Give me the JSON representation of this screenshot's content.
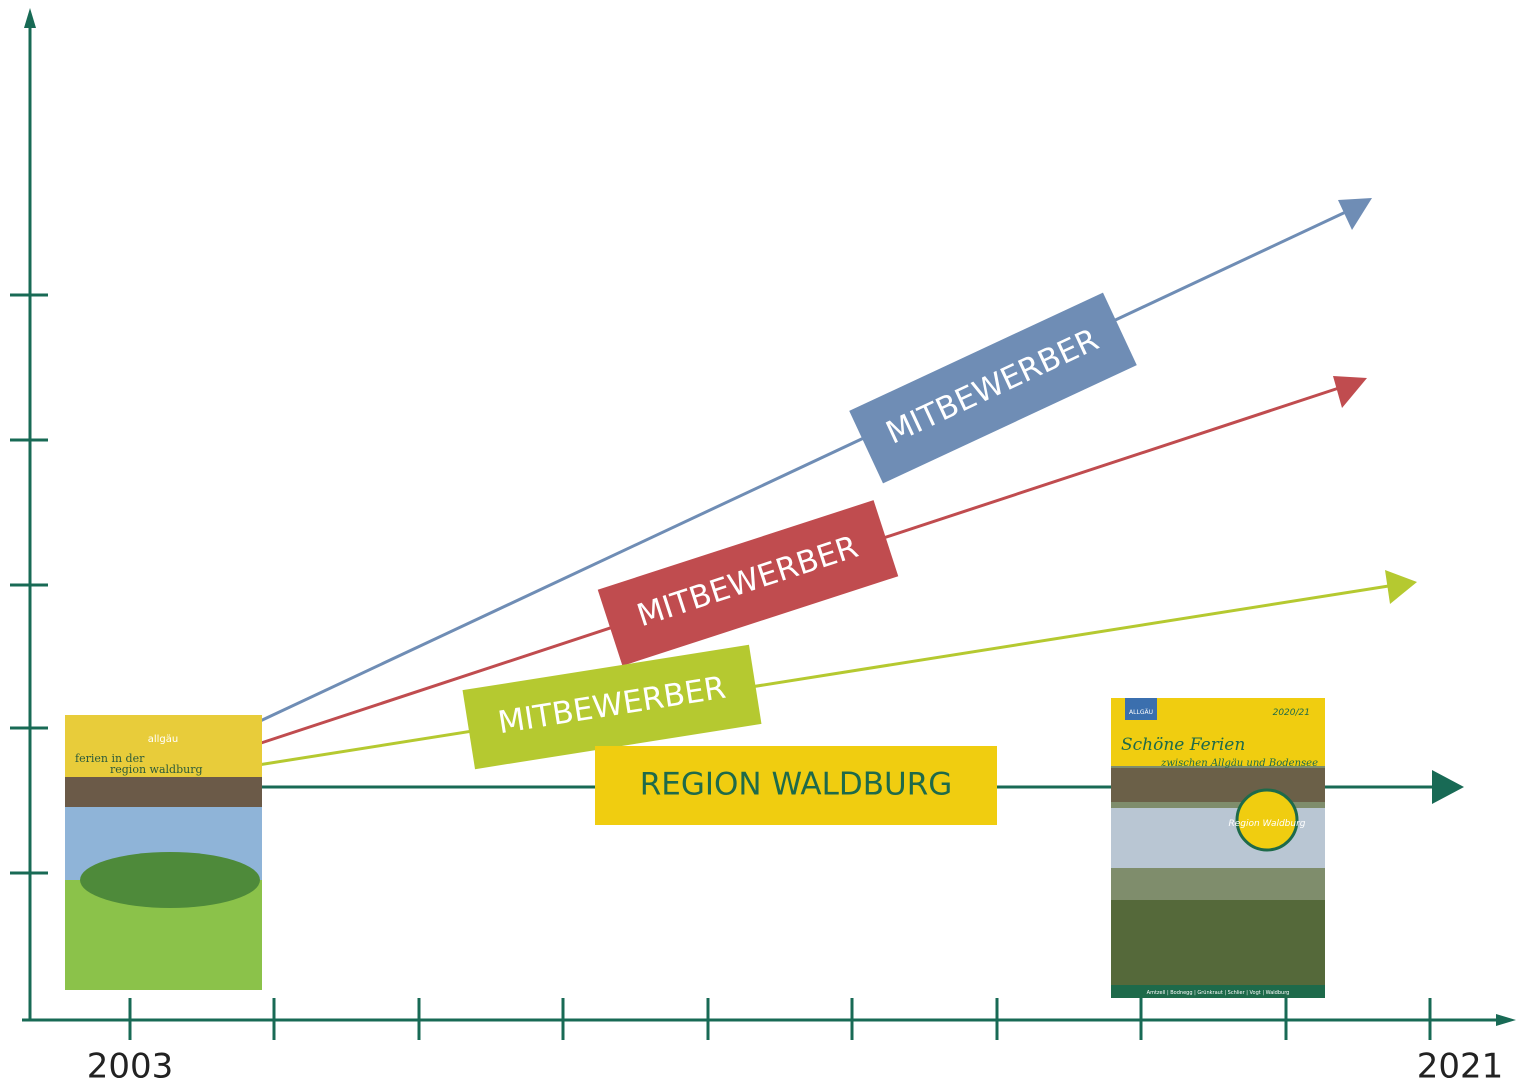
{
  "axis": {
    "start_label": "2003",
    "end_label": "2021"
  },
  "arrows": [
    {
      "label": "MITBEWERBER"
    },
    {
      "label": "MITBEWERBER"
    },
    {
      "label": "MITBEWERBER"
    },
    {
      "label": "REGION WALDBURG"
    }
  ],
  "brochure_old": {
    "title_line1": "ferien in der",
    "title_line2": "region waldburg",
    "badge": "allgäu"
  },
  "brochure_new": {
    "season": "2020/21",
    "title": "Schöne Ferien",
    "subtitle": "zwischen Allgäu und Bodensee",
    "badge": "Region Waldburg",
    "header": "ALLGÄU",
    "footer": "Amtzell | Bodnegg | Grünkraut | Schlier | Vogt | Waldburg"
  }
}
